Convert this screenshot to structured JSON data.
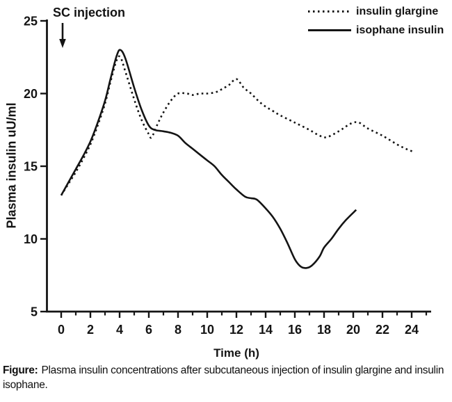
{
  "figure": {
    "caption_prefix": "Figure:",
    "caption_text": "Plasma insulin concentrations after subcutaneous injection of insulin glargine and insulin isophane."
  },
  "colors": {
    "foreground": "#141414",
    "background": "#ffffff"
  },
  "chart_data": {
    "type": "line",
    "title": "",
    "xlabel": "Time (h)",
    "ylabel": "Plasma insulin uU/ml",
    "xlim": [
      0,
      24
    ],
    "ylim": [
      5,
      25
    ],
    "grid": false,
    "legend_position": "top-right",
    "x_ticks": [
      0,
      2,
      4,
      6,
      8,
      10,
      12,
      14,
      16,
      18,
      20,
      22,
      24
    ],
    "x_minor_ticks": [
      1,
      3,
      5,
      7,
      9,
      11,
      13,
      15,
      17,
      19,
      21,
      23,
      25
    ],
    "y_ticks": [
      5,
      10,
      15,
      20,
      25
    ],
    "annotation": {
      "text": "SC injection",
      "x": 0
    },
    "series": [
      {
        "name": "insulin glargine",
        "line_style": "dotted",
        "color": "#141414",
        "points": [
          [
            0,
            13
          ],
          [
            0.5,
            13.8
          ],
          [
            1,
            14.6
          ],
          [
            1.5,
            15.5
          ],
          [
            2,
            16.5
          ],
          [
            2.5,
            17.8
          ],
          [
            3,
            19.3
          ],
          [
            3.4,
            20.9
          ],
          [
            3.8,
            22.3
          ],
          [
            4.05,
            22.5
          ],
          [
            4.4,
            21.5
          ],
          [
            5,
            19.6
          ],
          [
            5.5,
            18.2
          ],
          [
            6,
            17.2
          ],
          [
            6.2,
            17
          ],
          [
            6.6,
            17.9
          ],
          [
            7,
            18.7
          ],
          [
            7.5,
            19.5
          ],
          [
            8,
            20
          ],
          [
            8.6,
            20
          ],
          [
            9,
            19.9
          ],
          [
            9.5,
            20
          ],
          [
            10,
            20
          ],
          [
            10.6,
            20.1
          ],
          [
            11,
            20.3
          ],
          [
            11.5,
            20.6
          ],
          [
            12,
            21
          ],
          [
            12.5,
            20.4
          ],
          [
            13,
            20
          ],
          [
            13.5,
            19.5
          ],
          [
            14,
            19.1
          ],
          [
            14.5,
            18.8
          ],
          [
            15,
            18.5
          ],
          [
            16,
            18
          ],
          [
            17,
            17.5
          ],
          [
            17.7,
            17.1
          ],
          [
            18.2,
            17
          ],
          [
            19,
            17.4
          ],
          [
            19.6,
            17.8
          ],
          [
            20,
            18
          ],
          [
            20.4,
            18
          ],
          [
            21,
            17.6
          ],
          [
            22,
            17.1
          ],
          [
            23,
            16.5
          ],
          [
            23.6,
            16.2
          ],
          [
            24.1,
            16
          ]
        ]
      },
      {
        "name": "isophane insulin",
        "line_style": "solid",
        "color": "#141414",
        "points": [
          [
            0,
            13
          ],
          [
            0.5,
            13.9
          ],
          [
            1,
            14.8
          ],
          [
            1.5,
            15.7
          ],
          [
            2,
            16.7
          ],
          [
            2.5,
            18
          ],
          [
            3,
            19.5
          ],
          [
            3.4,
            21.1
          ],
          [
            3.8,
            22.6
          ],
          [
            4.05,
            23
          ],
          [
            4.4,
            22.4
          ],
          [
            5,
            20.4
          ],
          [
            5.5,
            18.9
          ],
          [
            6,
            17.8
          ],
          [
            6.4,
            17.5
          ],
          [
            7,
            17.4
          ],
          [
            7.5,
            17.3
          ],
          [
            8,
            17.1
          ],
          [
            8.5,
            16.6
          ],
          [
            9,
            16.2
          ],
          [
            9.5,
            15.8
          ],
          [
            10,
            15.4
          ],
          [
            10.5,
            15
          ],
          [
            11,
            14.4
          ],
          [
            11.5,
            13.9
          ],
          [
            12,
            13.4
          ],
          [
            12.6,
            12.9
          ],
          [
            13,
            12.8
          ],
          [
            13.4,
            12.7
          ],
          [
            14,
            12.1
          ],
          [
            14.5,
            11.5
          ],
          [
            15,
            10.7
          ],
          [
            15.5,
            9.7
          ],
          [
            16,
            8.6
          ],
          [
            16.4,
            8.1
          ],
          [
            16.8,
            8
          ],
          [
            17.2,
            8.2
          ],
          [
            17.7,
            8.8
          ],
          [
            18,
            9.4
          ],
          [
            18.5,
            10
          ],
          [
            19,
            10.7
          ],
          [
            19.5,
            11.3
          ],
          [
            20.2,
            12
          ]
        ]
      }
    ]
  }
}
